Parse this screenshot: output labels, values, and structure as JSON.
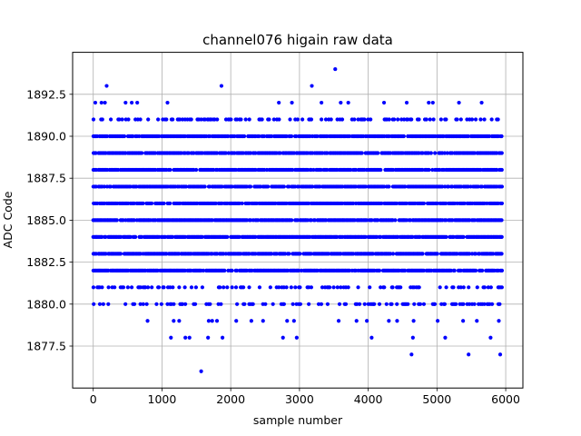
{
  "chart_data": {
    "type": "scatter",
    "title": "channel076 higain raw data",
    "xlabel": "sample number",
    "ylabel": "ADC Code",
    "xlim": [
      -300,
      6250
    ],
    "ylim": [
      1875.0,
      1895.0
    ],
    "xticks": [
      0,
      1000,
      2000,
      3000,
      4000,
      5000,
      6000
    ],
    "xtick_labels": [
      "0",
      "1000",
      "2000",
      "3000",
      "4000",
      "5000",
      "6000"
    ],
    "yticks": [
      1877.5,
      1880.0,
      1882.5,
      1885.0,
      1887.5,
      1890.0,
      1892.5
    ],
    "ytick_labels": [
      "1877.5",
      "1880.0",
      "1882.5",
      "1885.0",
      "1887.5",
      "1890.0",
      "1892.5"
    ],
    "grid": true,
    "marker_color": "#0000ff",
    "x_range": [
      0,
      5950
    ],
    "dense_levels": [
      1882,
      1883,
      1884,
      1885,
      1886,
      1887,
      1888,
      1889,
      1890
    ],
    "sparse_levels": [
      1880,
      1881,
      1891
    ],
    "outliers": [
      {
        "x": 30,
        "y": 1892
      },
      {
        "x": 120,
        "y": 1892
      },
      {
        "x": 170,
        "y": 1892
      },
      {
        "x": 195,
        "y": 1893
      },
      {
        "x": 470,
        "y": 1892
      },
      {
        "x": 560,
        "y": 1892
      },
      {
        "x": 640,
        "y": 1892
      },
      {
        "x": 1080,
        "y": 1892
      },
      {
        "x": 1865,
        "y": 1893
      },
      {
        "x": 2700,
        "y": 1892
      },
      {
        "x": 2890,
        "y": 1892
      },
      {
        "x": 3180,
        "y": 1893
      },
      {
        "x": 3320,
        "y": 1892
      },
      {
        "x": 3520,
        "y": 1894
      },
      {
        "x": 3600,
        "y": 1892
      },
      {
        "x": 3710,
        "y": 1892
      },
      {
        "x": 4230,
        "y": 1892
      },
      {
        "x": 4560,
        "y": 1892
      },
      {
        "x": 4880,
        "y": 1892
      },
      {
        "x": 4940,
        "y": 1892
      },
      {
        "x": 5320,
        "y": 1892
      },
      {
        "x": 5650,
        "y": 1892
      },
      {
        "x": 790,
        "y": 1879
      },
      {
        "x": 1170,
        "y": 1879
      },
      {
        "x": 1250,
        "y": 1879
      },
      {
        "x": 1680,
        "y": 1879
      },
      {
        "x": 1730,
        "y": 1879
      },
      {
        "x": 1800,
        "y": 1879
      },
      {
        "x": 2080,
        "y": 1879
      },
      {
        "x": 2300,
        "y": 1879
      },
      {
        "x": 2470,
        "y": 1879
      },
      {
        "x": 2820,
        "y": 1879
      },
      {
        "x": 2920,
        "y": 1879
      },
      {
        "x": 3570,
        "y": 1879
      },
      {
        "x": 3830,
        "y": 1879
      },
      {
        "x": 3980,
        "y": 1879
      },
      {
        "x": 4300,
        "y": 1879
      },
      {
        "x": 4420,
        "y": 1879
      },
      {
        "x": 4660,
        "y": 1879
      },
      {
        "x": 5010,
        "y": 1879
      },
      {
        "x": 5380,
        "y": 1879
      },
      {
        "x": 5580,
        "y": 1879
      },
      {
        "x": 5900,
        "y": 1879
      },
      {
        "x": 1130,
        "y": 1878
      },
      {
        "x": 1340,
        "y": 1878
      },
      {
        "x": 1400,
        "y": 1878
      },
      {
        "x": 1670,
        "y": 1878
      },
      {
        "x": 1880,
        "y": 1878
      },
      {
        "x": 2760,
        "y": 1878
      },
      {
        "x": 2960,
        "y": 1878
      },
      {
        "x": 4050,
        "y": 1878
      },
      {
        "x": 4650,
        "y": 1878
      },
      {
        "x": 5120,
        "y": 1878
      },
      {
        "x": 5780,
        "y": 1878
      },
      {
        "x": 1570,
        "y": 1876
      },
      {
        "x": 4630,
        "y": 1877
      },
      {
        "x": 5460,
        "y": 1877
      },
      {
        "x": 5920,
        "y": 1877
      }
    ]
  }
}
